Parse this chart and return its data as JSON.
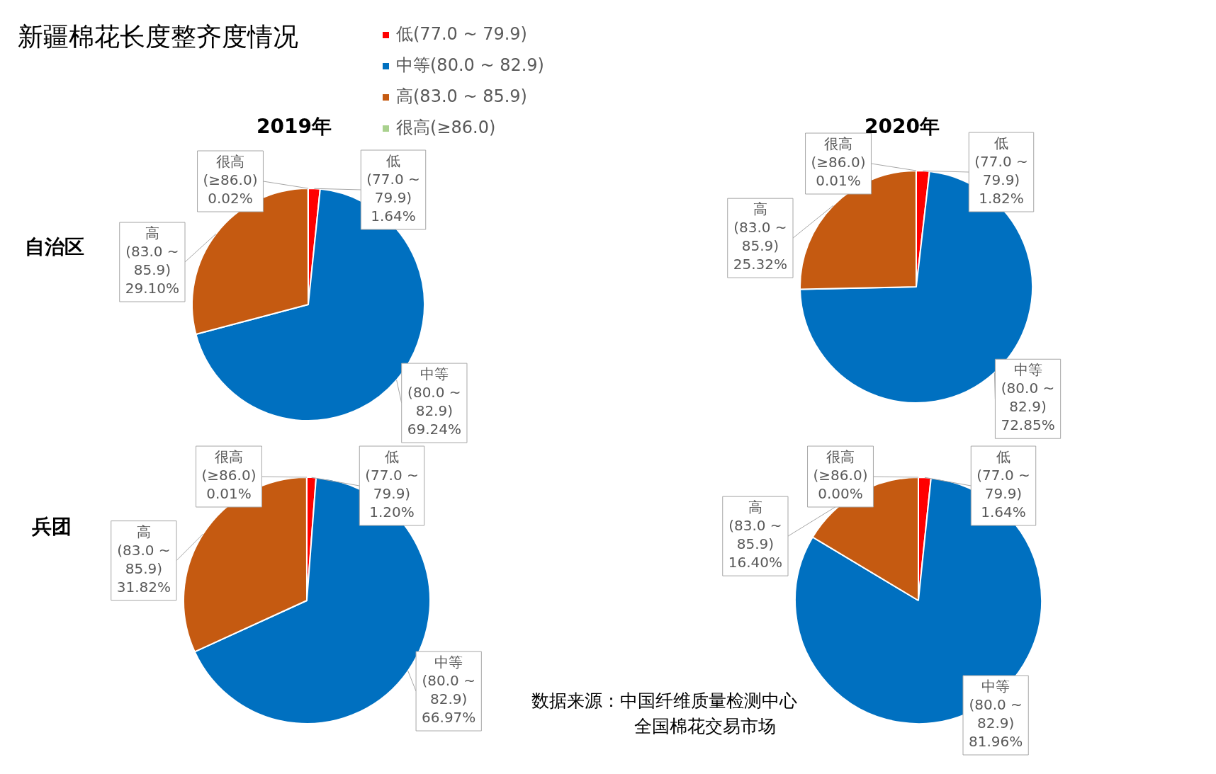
{
  "chart_data": [
    {
      "type": "other",
      "title": "新疆棉花长度整齐度情况",
      "annotations": [
        "数据来源：中国纤维质量检测中心",
        "全国棉花交易市场"
      ]
    },
    {
      "type": "pie",
      "title": "2019年",
      "ylabel": "自治区",
      "legend": "top right",
      "categories": [
        "低(77.0 ~ 79.9)",
        "中等(80.0 ~ 82.9)",
        "高(83.0 ~ 85.9)",
        "很高(≥86.0)"
      ],
      "values": [
        1.64,
        69.24,
        29.1,
        0.02
      ],
      "value_labels": [
        "1.64%",
        "69.24%",
        "29.10%",
        "0.02%"
      ],
      "colors": [
        "#ff0000",
        "#0070c0",
        "#c55a11",
        "#a9d18e"
      ]
    },
    {
      "type": "pie",
      "title": "2020年",
      "categories": [
        "低(77.0 ~ 79.9)",
        "中等(80.0 ~ 82.9)",
        "高(83.0 ~ 85.9)",
        "很高(≥86.0)"
      ],
      "values": [
        1.82,
        72.85,
        25.32,
        0.01
      ],
      "value_labels": [
        "1.82%",
        "72.85%",
        "25.32%",
        "0.01%"
      ],
      "colors": [
        "#ff0000",
        "#0070c0",
        "#c55a11",
        "#a9d18e"
      ]
    },
    {
      "type": "pie",
      "ylabel": "兵团",
      "categories": [
        "低(77.0 ~ 79.9)",
        "中等(80.0 ~ 82.9)",
        "高(83.0 ~ 85.9)",
        "很高(≥86.0)"
      ],
      "values": [
        1.2,
        66.97,
        31.82,
        0.01
      ],
      "value_labels": [
        "1.20%",
        "66.97%",
        "31.82%",
        "0.01%"
      ],
      "colors": [
        "#ff0000",
        "#0070c0",
        "#c55a11",
        "#a9d18e"
      ]
    },
    {
      "type": "pie",
      "categories": [
        "低(77.0 ~ 79.9)",
        "中等(80.0 ~ 82.9)",
        "高(83.0 ~ 85.9)",
        "很高(≥86.0)"
      ],
      "values": [
        1.64,
        81.96,
        16.4,
        0.0
      ],
      "value_labels": [
        "1.64%",
        "81.96%",
        "16.40%",
        "0.00%"
      ],
      "colors": [
        "#ff0000",
        "#0070c0",
        "#c55a11",
        "#a9d18e"
      ]
    }
  ]
}
